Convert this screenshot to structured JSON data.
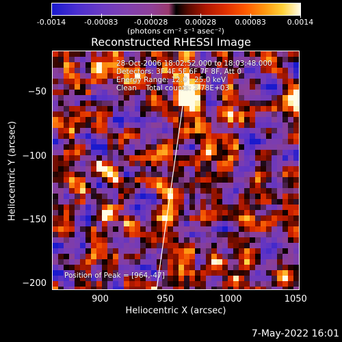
{
  "colorbar": {
    "tick_labels": [
      "-0.0014",
      "-0.00083",
      "-0.00028",
      "0.00028",
      "0.00083",
      "0.0014"
    ],
    "units": "(photons cm⁻² s⁻¹ asec⁻²)"
  },
  "chart_data": {
    "type": "heatmap",
    "title": "Reconstructed RHESSI Image",
    "xlabel": "Heliocentric X (arcsec)",
    "ylabel": "Heliocentric Y (arcsec)",
    "xlim": [
      863,
      1053
    ],
    "ylim": [
      -205,
      -17
    ],
    "x_ticks": [
      900,
      950,
      1000,
      1050
    ],
    "y_ticks": [
      -50,
      -100,
      -150,
      -200
    ],
    "peak": {
      "x": 964,
      "y": -47
    },
    "colorbar_range": [
      -0.0014,
      0.0014
    ]
  },
  "info": {
    "line1": "28-Oct-2006 18:02:52.000 to 18:03:48.000",
    "line2": "Detectors: 3F 4F 5F 6F 7F 8F, Att 0",
    "line3": "Energy Range: 12.0 - 25.0 keV",
    "line4": "Clean    Total counts: 2.78E+03",
    "peak_text": "Position of Peak = [964,-47]"
  },
  "footer": "7-May-2022 16:01"
}
